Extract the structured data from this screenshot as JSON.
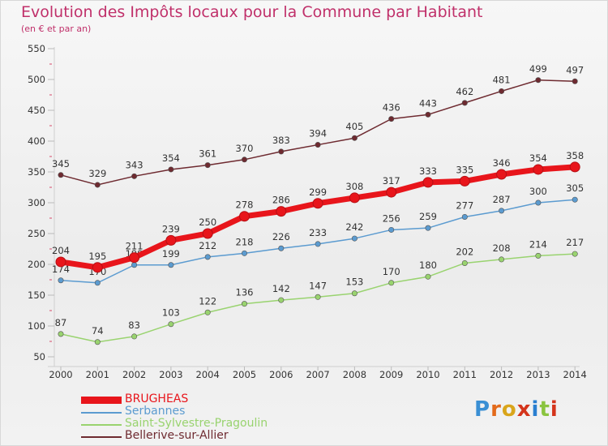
{
  "title": "Evolution des Impôts locaux pour la Commune par Habitant",
  "subtitle": "(en € et par an)",
  "logo_text": "Proxiti",
  "chart_data": {
    "type": "line",
    "x": [
      "2000",
      "2001",
      "2002",
      "2003",
      "2004",
      "2005",
      "2006",
      "2007",
      "2008",
      "2009",
      "2010",
      "2011",
      "2012",
      "2013",
      "2014"
    ],
    "ylim": [
      50,
      550
    ],
    "yticks": [
      50,
      100,
      150,
      200,
      250,
      300,
      350,
      400,
      450,
      500,
      550
    ],
    "grid": false,
    "legend_position": "bottom-left",
    "series": [
      {
        "name": "BRUGHEAS",
        "color": "#e8151b",
        "values": [
          204,
          195,
          211,
          239,
          250,
          278,
          286,
          299,
          308,
          317,
          333,
          335,
          346,
          354,
          358
        ]
      },
      {
        "name": "Serbannes",
        "color": "#5b9bd0",
        "values": [
          174,
          170,
          199,
          199,
          212,
          218,
          226,
          233,
          242,
          256,
          259,
          277,
          287,
          300,
          305
        ]
      },
      {
        "name": "Saint-Sylvestre-Pragoulin",
        "color": "#99d36f",
        "values": [
          87,
          74,
          83,
          103,
          122,
          136,
          142,
          147,
          153,
          170,
          180,
          202,
          208,
          214,
          217
        ]
      },
      {
        "name": "Bellerive-sur-Allier",
        "color": "#6e2a30",
        "values": [
          345,
          329,
          343,
          354,
          361,
          370,
          383,
          394,
          405,
          436,
          443,
          462,
          481,
          499,
          497
        ]
      }
    ]
  }
}
